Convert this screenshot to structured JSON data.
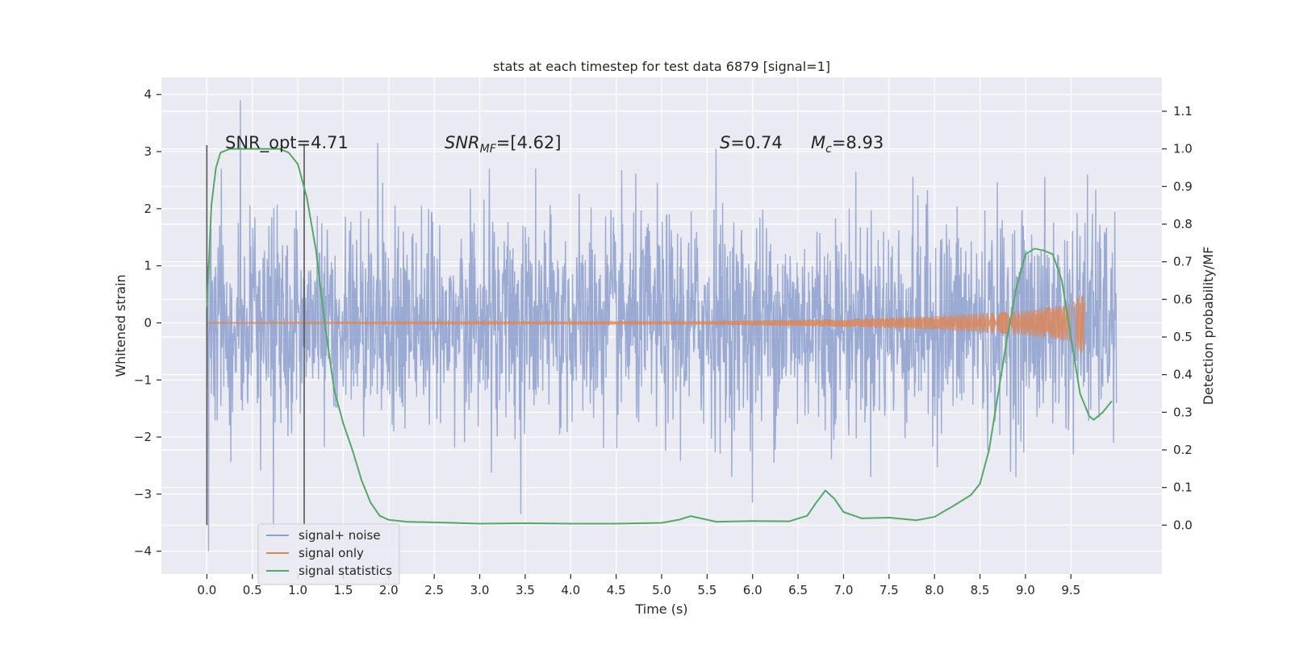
{
  "chart_data": {
    "type": "line",
    "title": "stats at each timestep for test data 6879 [signal=1]",
    "xlabel": "Time (s)",
    "ylabel": "Whitened strain",
    "ylabel_right": "Detection probability/MF",
    "xlim": [
      -0.5,
      10.5
    ],
    "ylim": [
      -4.4,
      4.3
    ],
    "ylim_right": [
      -0.13,
      1.19
    ],
    "x_ticks": [
      "0.0",
      "0.5",
      "1.0",
      "1.5",
      "2.0",
      "2.5",
      "3.0",
      "3.5",
      "4.0",
      "4.5",
      "5.0",
      "5.5",
      "6.0",
      "6.5",
      "7.0",
      "7.5",
      "8.0",
      "8.5",
      "9.0",
      "9.5"
    ],
    "y_ticks": [
      "−4",
      "−3",
      "−2",
      "−1",
      "0",
      "1",
      "2",
      "3",
      "4"
    ],
    "y_right_ticks": [
      "0.0",
      "0.1",
      "0.2",
      "0.3",
      "0.4",
      "0.5",
      "0.6",
      "0.7",
      "0.8",
      "0.9",
      "1.0",
      "1.1"
    ],
    "grid": true,
    "legend_position": "lower-left",
    "annotations": {
      "snr_opt": "SNR_opt=4.71",
      "snr_mf_base": "SNR",
      "snr_mf_sub": "MF",
      "snr_mf_value": "=[4.62]",
      "s_var": "S",
      "s_value": "=0.74",
      "mc_var": "M",
      "mc_sub": "c",
      "mc_value": "=8.93"
    },
    "vlines_x": [
      0.0,
      1.07
    ],
    "series": [
      {
        "name": "signal+ noise",
        "color": "#8c9fcc",
        "axis": "left",
        "x_range": [
          0.0,
          10.0
        ],
        "typical_amplitude": 1.3,
        "peaks": [
          [
            0.02,
            -4.0
          ],
          [
            0.37,
            3.9
          ],
          [
            0.73,
            -3.6
          ],
          [
            1.88,
            3.15
          ],
          [
            3.45,
            -3.35
          ],
          [
            5.6,
            3.05
          ],
          [
            6.0,
            -3.15
          ],
          [
            9.68,
            2.6
          ]
        ]
      },
      {
        "name": "signal only",
        "color": "#dd8452",
        "axis": "left",
        "x_range": [
          0.0,
          9.65
        ],
        "amplitude_points": [
          [
            0.0,
            0.01
          ],
          [
            5.5,
            0.03
          ],
          [
            7.0,
            0.07
          ],
          [
            8.0,
            0.12
          ],
          [
            9.0,
            0.22
          ],
          [
            9.5,
            0.33
          ],
          [
            9.64,
            0.62
          ]
        ]
      },
      {
        "name": "signal statistics",
        "color": "#55a868",
        "axis": "right",
        "points": [
          [
            0.0,
            0.58
          ],
          [
            0.05,
            0.85
          ],
          [
            0.1,
            0.95
          ],
          [
            0.15,
            0.99
          ],
          [
            0.25,
            1.0
          ],
          [
            0.5,
            1.0
          ],
          [
            0.8,
            1.0
          ],
          [
            0.9,
            0.99
          ],
          [
            1.0,
            0.96
          ],
          [
            1.1,
            0.87
          ],
          [
            1.2,
            0.73
          ],
          [
            1.3,
            0.53
          ],
          [
            1.4,
            0.36
          ],
          [
            1.5,
            0.27
          ],
          [
            1.6,
            0.2
          ],
          [
            1.7,
            0.12
          ],
          [
            1.8,
            0.06
          ],
          [
            1.9,
            0.025
          ],
          [
            2.0,
            0.014
          ],
          [
            2.2,
            0.009
          ],
          [
            2.6,
            0.007
          ],
          [
            3.0,
            0.004
          ],
          [
            3.5,
            0.005
          ],
          [
            4.0,
            0.004
          ],
          [
            4.5,
            0.004
          ],
          [
            5.0,
            0.006
          ],
          [
            5.2,
            0.015
          ],
          [
            5.32,
            0.024
          ],
          [
            5.45,
            0.017
          ],
          [
            5.6,
            0.009
          ],
          [
            6.0,
            0.011
          ],
          [
            6.4,
            0.01
          ],
          [
            6.6,
            0.025
          ],
          [
            6.7,
            0.06
          ],
          [
            6.8,
            0.092
          ],
          [
            6.9,
            0.07
          ],
          [
            7.0,
            0.035
          ],
          [
            7.2,
            0.018
          ],
          [
            7.5,
            0.02
          ],
          [
            7.8,
            0.013
          ],
          [
            8.0,
            0.022
          ],
          [
            8.2,
            0.05
          ],
          [
            8.4,
            0.08
          ],
          [
            8.5,
            0.11
          ],
          [
            8.6,
            0.2
          ],
          [
            8.7,
            0.35
          ],
          [
            8.8,
            0.5
          ],
          [
            8.9,
            0.63
          ],
          [
            9.0,
            0.72
          ],
          [
            9.1,
            0.735
          ],
          [
            9.2,
            0.73
          ],
          [
            9.3,
            0.72
          ],
          [
            9.4,
            0.65
          ],
          [
            9.5,
            0.5
          ],
          [
            9.6,
            0.35
          ],
          [
            9.7,
            0.29
          ],
          [
            9.75,
            0.28
          ],
          [
            9.85,
            0.3
          ],
          [
            9.95,
            0.33
          ]
        ]
      }
    ]
  }
}
